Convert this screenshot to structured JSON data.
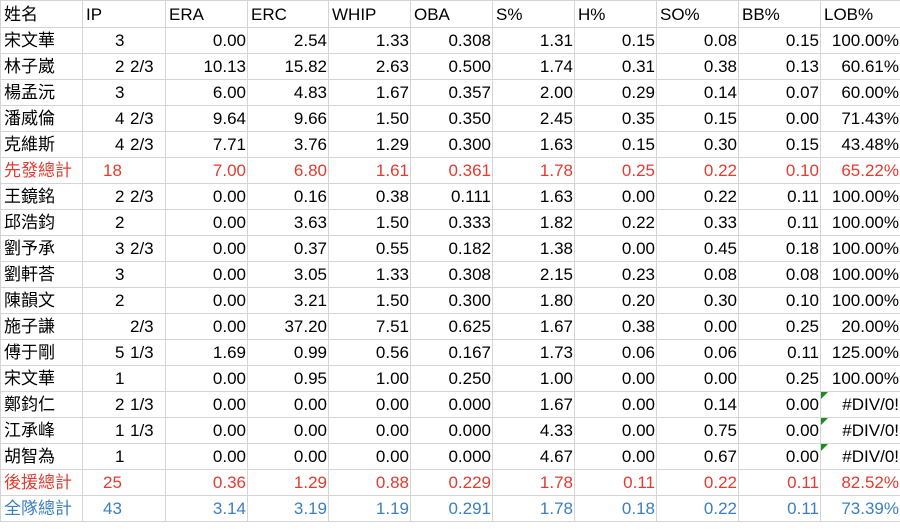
{
  "headers": [
    "姓名",
    "IP",
    "ERA",
    "ERC",
    "WHIP",
    "OBA",
    "S%",
    "H%",
    "SO%",
    "BB%",
    "LOB%"
  ],
  "colors": {
    "text": "#000000",
    "starter_total": "#e03c31",
    "reliever_total": "#e03c31",
    "team_total": "#3a7fc1",
    "error_flag": "#1f8a1f",
    "grid": "#d4d4d4"
  },
  "rows": [
    {
      "name": "宋文華",
      "ip_whole": "3",
      "ip_frac": "",
      "era": "0.00",
      "erc": "2.54",
      "whip": "1.33",
      "oba": "0.308",
      "s": "1.31",
      "h": "0.15",
      "so": "0.08",
      "bb": "0.15",
      "lob": "100.00%"
    },
    {
      "name": "林子崴",
      "ip_whole": "2",
      "ip_frac": "2/3",
      "era": "10.13",
      "erc": "15.82",
      "whip": "2.63",
      "oba": "0.500",
      "s": "1.74",
      "h": "0.31",
      "so": "0.38",
      "bb": "0.13",
      "lob": "60.61%"
    },
    {
      "name": "楊孟沅",
      "ip_whole": "3",
      "ip_frac": "",
      "era": "6.00",
      "erc": "4.83",
      "whip": "1.67",
      "oba": "0.357",
      "s": "2.00",
      "h": "0.29",
      "so": "0.14",
      "bb": "0.07",
      "lob": "60.00%"
    },
    {
      "name": "潘威倫",
      "ip_whole": "4",
      "ip_frac": "2/3",
      "era": "9.64",
      "erc": "9.66",
      "whip": "1.50",
      "oba": "0.350",
      "s": "2.45",
      "h": "0.35",
      "so": "0.15",
      "bb": "0.00",
      "lob": "71.43%"
    },
    {
      "name": "克維斯",
      "ip_whole": "4",
      "ip_frac": "2/3",
      "era": "7.71",
      "erc": "3.76",
      "whip": "1.29",
      "oba": "0.300",
      "s": "1.63",
      "h": "0.15",
      "so": "0.30",
      "bb": "0.15",
      "lob": "43.48%"
    },
    {
      "name": "先發總計",
      "ip_whole": "18",
      "ip_frac": "",
      "era": "7.00",
      "erc": "6.80",
      "whip": "1.61",
      "oba": "0.361",
      "s": "1.78",
      "h": "0.25",
      "so": "0.22",
      "bb": "0.10",
      "lob": "65.22%",
      "style": "starter_total"
    },
    {
      "name": "王鏡銘",
      "ip_whole": "2",
      "ip_frac": "2/3",
      "era": "0.00",
      "erc": "0.16",
      "whip": "0.38",
      "oba": "0.111",
      "s": "1.63",
      "h": "0.00",
      "so": "0.22",
      "bb": "0.11",
      "lob": "100.00%"
    },
    {
      "name": "邱浩鈞",
      "ip_whole": "2",
      "ip_frac": "",
      "era": "0.00",
      "erc": "3.63",
      "whip": "1.50",
      "oba": "0.333",
      "s": "1.82",
      "h": "0.22",
      "so": "0.33",
      "bb": "0.11",
      "lob": "100.00%"
    },
    {
      "name": "劉予承",
      "ip_whole": "3",
      "ip_frac": "2/3",
      "era": "0.00",
      "erc": "0.37",
      "whip": "0.55",
      "oba": "0.182",
      "s": "1.38",
      "h": "0.00",
      "so": "0.45",
      "bb": "0.18",
      "lob": "100.00%"
    },
    {
      "name": "劉軒荅",
      "ip_whole": "3",
      "ip_frac": "",
      "era": "0.00",
      "erc": "3.05",
      "whip": "1.33",
      "oba": "0.308",
      "s": "2.15",
      "h": "0.23",
      "so": "0.08",
      "bb": "0.08",
      "lob": "100.00%"
    },
    {
      "name": "陳韻文",
      "ip_whole": "2",
      "ip_frac": "",
      "era": "0.00",
      "erc": "3.21",
      "whip": "1.50",
      "oba": "0.300",
      "s": "1.80",
      "h": "0.20",
      "so": "0.30",
      "bb": "0.10",
      "lob": "100.00%"
    },
    {
      "name": "施子謙",
      "ip_whole": "",
      "ip_frac": "2/3",
      "era": "0.00",
      "erc": "37.20",
      "whip": "7.51",
      "oba": "0.625",
      "s": "1.67",
      "h": "0.38",
      "so": "0.00",
      "bb": "0.25",
      "lob": "20.00%"
    },
    {
      "name": "傅于剛",
      "ip_whole": "5",
      "ip_frac": "1/3",
      "era": "1.69",
      "erc": "0.99",
      "whip": "0.56",
      "oba": "0.167",
      "s": "1.73",
      "h": "0.06",
      "so": "0.06",
      "bb": "0.11",
      "lob": "125.00%"
    },
    {
      "name": "宋文華",
      "ip_whole": "1",
      "ip_frac": "",
      "era": "0.00",
      "erc": "0.95",
      "whip": "1.00",
      "oba": "0.250",
      "s": "1.00",
      "h": "0.00",
      "so": "0.00",
      "bb": "0.25",
      "lob": "100.00%"
    },
    {
      "name": "鄭鈞仁",
      "ip_whole": "2",
      "ip_frac": "1/3",
      "era": "0.00",
      "erc": "0.00",
      "whip": "0.00",
      "oba": "0.000",
      "s": "1.67",
      "h": "0.00",
      "so": "0.14",
      "bb": "0.00",
      "lob": "#DIV/0!",
      "error": true
    },
    {
      "name": "江承峰",
      "ip_whole": "1",
      "ip_frac": "1/3",
      "era": "0.00",
      "erc": "0.00",
      "whip": "0.00",
      "oba": "0.000",
      "s": "4.33",
      "h": "0.00",
      "so": "0.75",
      "bb": "0.00",
      "lob": "#DIV/0!",
      "error": true
    },
    {
      "name": "胡智為",
      "ip_whole": "1",
      "ip_frac": "",
      "era": "0.00",
      "erc": "0.00",
      "whip": "0.00",
      "oba": "0.000",
      "s": "4.67",
      "h": "0.00",
      "so": "0.67",
      "bb": "0.00",
      "lob": "#DIV/0!",
      "error": true
    },
    {
      "name": "後援總計",
      "ip_whole": "25",
      "ip_frac": "",
      "era": "0.36",
      "erc": "1.29",
      "whip": "0.88",
      "oba": "0.229",
      "s": "1.78",
      "h": "0.11",
      "so": "0.22",
      "bb": "0.11",
      "lob": "82.52%",
      "style": "reliever_total"
    },
    {
      "name": "全隊總計",
      "ip_whole": "43",
      "ip_frac": "",
      "era": "3.14",
      "erc": "3.19",
      "whip": "1.19",
      "oba": "0.291",
      "s": "1.78",
      "h": "0.18",
      "so": "0.22",
      "bb": "0.11",
      "lob": "73.39%",
      "style": "team_total"
    }
  ]
}
